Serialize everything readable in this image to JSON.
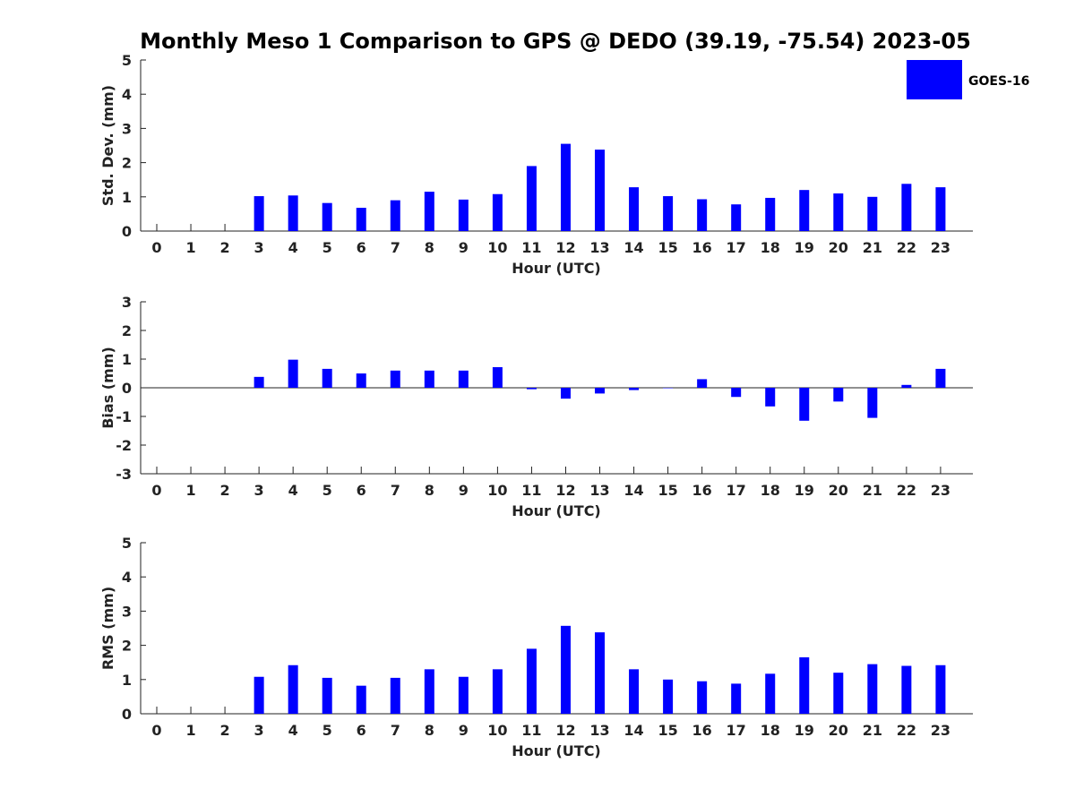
{
  "title": "Monthly Meso 1 Comparison to GPS @ DEDO (39.19, -75.54) 2023-05",
  "colors": {
    "bar": "#0000ff",
    "axis": "#222222"
  },
  "legend": {
    "label": "GOES-16",
    "placement": "top-right"
  },
  "chart_data": [
    {
      "type": "bar",
      "title": "Monthly Meso 1 Comparison to GPS @ DEDO (39.19, -75.54) 2023-05",
      "xlabel": "Hour (UTC)",
      "ylabel": "Std. Dev. (mm)",
      "ylim": [
        0,
        5
      ],
      "yticks": [
        "0",
        "1",
        "2",
        "3",
        "4",
        "5"
      ],
      "categories": [
        "0",
        "1",
        "2",
        "3",
        "4",
        "5",
        "6",
        "7",
        "8",
        "9",
        "10",
        "11",
        "12",
        "13",
        "14",
        "15",
        "16",
        "17",
        "18",
        "19",
        "20",
        "21",
        "22",
        "23"
      ],
      "series": [
        {
          "name": "GOES-16",
          "values": [
            null,
            null,
            null,
            1.02,
            1.04,
            0.82,
            0.68,
            0.9,
            1.15,
            0.92,
            1.08,
            1.9,
            2.55,
            2.38,
            1.28,
            1.02,
            0.93,
            0.78,
            0.97,
            1.2,
            1.1,
            1.0,
            1.38,
            1.28
          ]
        }
      ]
    },
    {
      "type": "bar",
      "xlabel": "Hour (UTC)",
      "ylabel": "Bias (mm)",
      "ylim": [
        -3,
        3
      ],
      "yticks": [
        "-3",
        "-2",
        "-1",
        "0",
        "1",
        "2",
        "3"
      ],
      "categories": [
        "0",
        "1",
        "2",
        "3",
        "4",
        "5",
        "6",
        "7",
        "8",
        "9",
        "10",
        "11",
        "12",
        "13",
        "14",
        "15",
        "16",
        "17",
        "18",
        "19",
        "20",
        "21",
        "22",
        "23"
      ],
      "series": [
        {
          "name": "GOES-16",
          "values": [
            null,
            null,
            null,
            0.38,
            0.98,
            0.66,
            0.5,
            0.6,
            0.6,
            0.6,
            0.72,
            -0.05,
            -0.38,
            -0.2,
            -0.08,
            0.0,
            0.3,
            -0.32,
            -0.65,
            -1.15,
            -0.48,
            -1.05,
            0.1,
            0.66
          ]
        }
      ]
    },
    {
      "type": "bar",
      "xlabel": "Hour (UTC)",
      "ylabel": "RMS (mm)",
      "ylim": [
        0,
        5
      ],
      "yticks": [
        "0",
        "1",
        "2",
        "3",
        "4",
        "5"
      ],
      "categories": [
        "0",
        "1",
        "2",
        "3",
        "4",
        "5",
        "6",
        "7",
        "8",
        "9",
        "10",
        "11",
        "12",
        "13",
        "14",
        "15",
        "16",
        "17",
        "18",
        "19",
        "20",
        "21",
        "22",
        "23"
      ],
      "series": [
        {
          "name": "GOES-16",
          "values": [
            null,
            null,
            null,
            1.08,
            1.42,
            1.05,
            0.82,
            1.05,
            1.3,
            1.08,
            1.3,
            1.9,
            2.57,
            2.38,
            1.3,
            1.0,
            0.95,
            0.88,
            1.17,
            1.65,
            1.2,
            1.45,
            1.4,
            1.42
          ]
        }
      ]
    }
  ]
}
